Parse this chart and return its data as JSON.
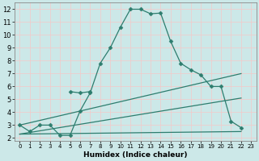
{
  "title": "",
  "xlabel": "Humidex (Indice chaleur)",
  "ylabel": "",
  "bg_color": "#cce8e8",
  "grid_color": "#f5c8c8",
  "line_color": "#2d7d6e",
  "xlim": [
    -0.5,
    23.5
  ],
  "ylim": [
    1.8,
    12.5
  ],
  "yticks": [
    2,
    3,
    4,
    5,
    6,
    7,
    8,
    9,
    10,
    11,
    12
  ],
  "xticks": [
    0,
    1,
    2,
    3,
    4,
    5,
    6,
    7,
    8,
    9,
    10,
    11,
    12,
    13,
    14,
    15,
    16,
    17,
    18,
    19,
    20,
    21,
    22,
    23
  ],
  "series": [
    {
      "x": [
        0,
        1,
        2,
        3,
        4,
        5,
        6,
        7,
        8,
        9,
        10,
        11,
        12,
        13,
        14,
        15,
        16,
        17,
        18,
        19,
        20,
        21,
        22
      ],
      "y": [
        3.0,
        2.5,
        3.0,
        3.0,
        2.2,
        2.2,
        4.1,
        5.5,
        7.8,
        9.0,
        10.6,
        12.0,
        12.0,
        11.65,
        11.7,
        9.5,
        7.8,
        7.3,
        6.9,
        6.0,
        6.0,
        3.3,
        2.8
      ],
      "marker": "D",
      "markersize": 2.5
    },
    {
      "x": [
        5,
        6,
        7
      ],
      "y": [
        5.6,
        5.5,
        5.6
      ],
      "marker": "D",
      "markersize": 2.5
    },
    {
      "x": [
        0,
        22
      ],
      "y": [
        3.0,
        7.0
      ],
      "marker": null,
      "markersize": 0
    },
    {
      "comment": "diagonal line from (0,2.3) to (22, 5.1)",
      "x": [
        0,
        22
      ],
      "y": [
        2.3,
        5.1
      ],
      "marker": null,
      "markersize": 0
    },
    {
      "x": [
        0,
        22
      ],
      "y": [
        2.3,
        2.5
      ],
      "marker": null,
      "markersize": 0
    }
  ]
}
